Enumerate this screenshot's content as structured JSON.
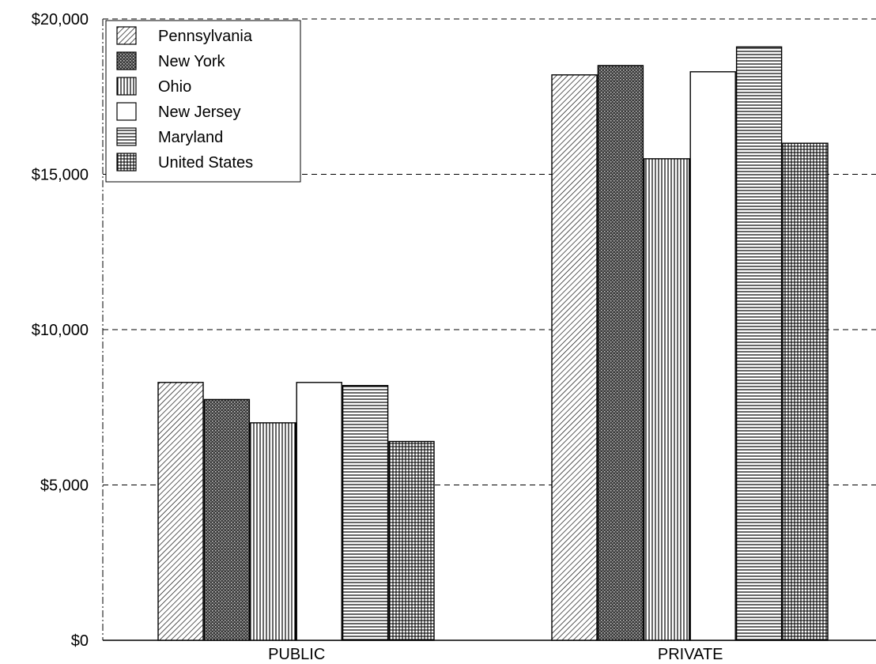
{
  "chart_data": {
    "type": "bar",
    "title": "",
    "xlabel": "",
    "ylabel": "",
    "categories": [
      "PUBLIC",
      "PRIVATE"
    ],
    "y_ticks": [
      "$0",
      "$5,000",
      "$10,000",
      "$15,000",
      "$20,000"
    ],
    "y_tick_values": [
      0,
      5000,
      10000,
      15000,
      20000
    ],
    "ylim": [
      0,
      20000
    ],
    "grid": "horizontal dashed",
    "legend_position": "top-left",
    "series": [
      {
        "name": "Pennsylvania",
        "pattern": "diagonal-hatch",
        "values": [
          8300,
          18200
        ]
      },
      {
        "name": "New York",
        "pattern": "dense-crosshatch",
        "values": [
          7750,
          18500
        ]
      },
      {
        "name": "Ohio",
        "pattern": "vertical-lines",
        "values": [
          7000,
          15500
        ]
      },
      {
        "name": "New Jersey",
        "pattern": "blank",
        "values": [
          8300,
          18300
        ]
      },
      {
        "name": "Maryland",
        "pattern": "horizontal-lines",
        "values": [
          8200,
          19100
        ]
      },
      {
        "name": "United States",
        "pattern": "grid",
        "values": [
          6400,
          16000
        ]
      }
    ]
  }
}
